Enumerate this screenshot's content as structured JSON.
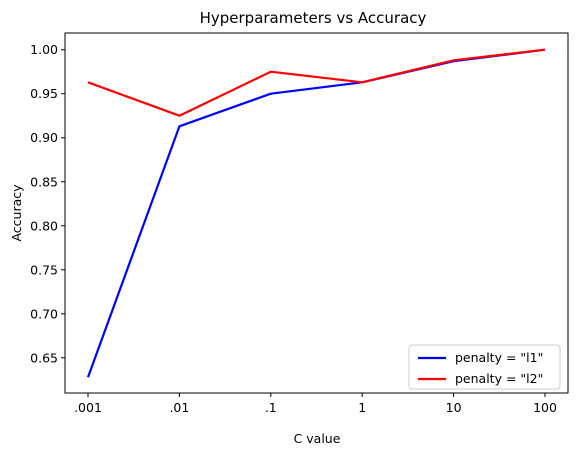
{
  "chart_data": {
    "type": "line",
    "title": "Hyperparameters vs Accuracy",
    "xlabel": "C value",
    "ylabel": "Accuracy",
    "categories": [
      ".001",
      ".01",
      ".1",
      "1",
      "10",
      "100"
    ],
    "ylim": [
      0.61,
      1.019
    ],
    "yticks": [
      "0.65",
      "0.70",
      "0.75",
      "0.80",
      "0.85",
      "0.90",
      "0.95",
      "1.00"
    ],
    "grid": false,
    "legend": "bottom-right",
    "series": [
      {
        "name": "penalty = \"l1\"",
        "color": "#0000ff",
        "values": [
          0.628,
          0.913,
          0.95,
          0.963,
          0.987,
          1.0
        ]
      },
      {
        "name": "penalty = \"l2\"",
        "color": "#ff0000",
        "values": [
          0.963,
          0.925,
          0.975,
          0.963,
          0.988,
          1.0
        ]
      }
    ]
  }
}
